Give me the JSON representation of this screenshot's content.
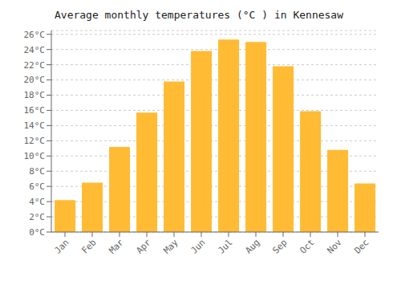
{
  "chart_data": {
    "type": "bar",
    "title": "Average monthly temperatures (°C ) in Kennesaw",
    "categories": [
      "Jan",
      "Feb",
      "Mar",
      "Apr",
      "May",
      "Jun",
      "Jul",
      "Aug",
      "Sep",
      "Oct",
      "Nov",
      "Dec"
    ],
    "values": [
      4.2,
      6.5,
      11.2,
      15.7,
      19.8,
      23.8,
      25.3,
      25.0,
      21.8,
      15.9,
      10.8,
      6.4
    ],
    "color": "#FFBB33",
    "ylim": [
      0,
      26.5
    ],
    "yticks": [
      {
        "value": 0,
        "label": "0°C"
      },
      {
        "value": 2,
        "label": "2°C"
      },
      {
        "value": 4,
        "label": "4°C"
      },
      {
        "value": 6,
        "label": "6°C"
      },
      {
        "value": 8,
        "label": "8°C"
      },
      {
        "value": 10,
        "label": "10°C"
      },
      {
        "value": 12,
        "label": "12°C"
      },
      {
        "value": 14,
        "label": "14°C"
      },
      {
        "value": 16,
        "label": "16°C"
      },
      {
        "value": 18,
        "label": "18°C"
      },
      {
        "value": 20,
        "label": "20°C"
      },
      {
        "value": 22,
        "label": "22°C"
      },
      {
        "value": 24,
        "label": "24°C"
      },
      {
        "value": 26,
        "label": "26°C"
      }
    ],
    "grid": true
  }
}
